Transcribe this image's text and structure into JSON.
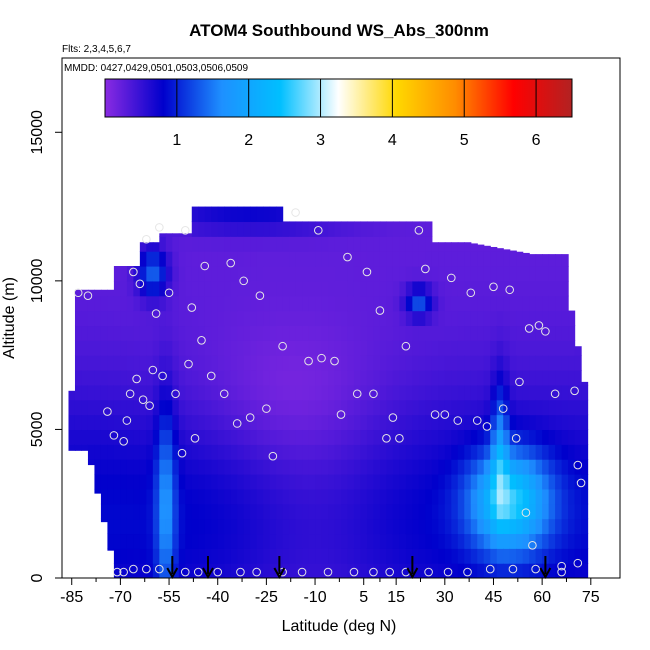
{
  "chart_data": {
    "type": "heatmap",
    "title": "ATOM4 Southbound WS_Abs_300nm",
    "subtitle": "Flts: 2,3,4,5,6,7",
    "annotation": "MMDD: 0427,0429,0501,0503,0506,0509",
    "xlabel": "Latitude (deg N)",
    "ylabel": "Altitude (m)",
    "xlim": [
      -88,
      84
    ],
    "ylim": [
      0,
      17500
    ],
    "x_ticks": [
      -85,
      -70,
      -55,
      -40,
      -25,
      -10,
      5,
      15,
      30,
      45,
      60,
      75
    ],
    "x_tick_labels": [
      "-85",
      "-70",
      "-55",
      "-40",
      "-25",
      "-10",
      "5",
      "15",
      "30",
      "45",
      "60",
      "75"
    ],
    "y_ticks": [
      0,
      5000,
      10000,
      15000
    ],
    "y_tick_labels": [
      "0",
      "5000",
      "10000",
      "15000"
    ],
    "colorbar": {
      "min": 0,
      "max": 6.5,
      "ticks": [
        1,
        2,
        3,
        4,
        5,
        6
      ],
      "tick_labels": [
        "1",
        "2",
        "3",
        "4",
        "5",
        "6"
      ],
      "colors": [
        "#8a2be2",
        "#0000cc",
        "#1e90ff",
        "#00bfff",
        "#ffffff",
        "#ffd700",
        "#ff8c00",
        "#ff0000",
        "#b22222"
      ]
    },
    "grid": false,
    "profile_latitudes": [
      -54,
      -43,
      -21,
      20,
      61
    ],
    "sample_points": [
      {
        "lat": -83,
        "alt": 9600
      },
      {
        "lat": -80,
        "alt": 9500
      },
      {
        "lat": -74,
        "alt": 5600
      },
      {
        "lat": -72,
        "alt": 4800
      },
      {
        "lat": -71,
        "alt": 200
      },
      {
        "lat": -69,
        "alt": 4600
      },
      {
        "lat": -68,
        "alt": 5300
      },
      {
        "lat": -67,
        "alt": 6200
      },
      {
        "lat": -66,
        "alt": 10300
      },
      {
        "lat": -65,
        "alt": 6700
      },
      {
        "lat": -64,
        "alt": 9900
      },
      {
        "lat": -63,
        "alt": 6000
      },
      {
        "lat": -62,
        "alt": 11400
      },
      {
        "lat": -61,
        "alt": 5800
      },
      {
        "lat": -60,
        "alt": 7000
      },
      {
        "lat": -59,
        "alt": 8900
      },
      {
        "lat": -58,
        "alt": 11800
      },
      {
        "lat": -57,
        "alt": 6800
      },
      {
        "lat": -55,
        "alt": 9600
      },
      {
        "lat": -53,
        "alt": 6200
      },
      {
        "lat": -51,
        "alt": 4200
      },
      {
        "lat": -50,
        "alt": 11700
      },
      {
        "lat": -49,
        "alt": 7200
      },
      {
        "lat": -48,
        "alt": 9100
      },
      {
        "lat": -47,
        "alt": 4700
      },
      {
        "lat": -45,
        "alt": 8000
      },
      {
        "lat": -44,
        "alt": 10500
      },
      {
        "lat": -42,
        "alt": 6800
      },
      {
        "lat": -38,
        "alt": 6200
      },
      {
        "lat": -36,
        "alt": 10600
      },
      {
        "lat": -34,
        "alt": 5200
      },
      {
        "lat": -32,
        "alt": 10000
      },
      {
        "lat": -30,
        "alt": 5400
      },
      {
        "lat": -27,
        "alt": 9500
      },
      {
        "lat": -25,
        "alt": 5700
      },
      {
        "lat": -23,
        "alt": 4100
      },
      {
        "lat": -20,
        "alt": 7800
      },
      {
        "lat": -16,
        "alt": 12300
      },
      {
        "lat": -12,
        "alt": 7300
      },
      {
        "lat": -9,
        "alt": 11700
      },
      {
        "lat": -8,
        "alt": 7400
      },
      {
        "lat": -4,
        "alt": 7300
      },
      {
        "lat": -2,
        "alt": 5500
      },
      {
        "lat": 0,
        "alt": 10800
      },
      {
        "lat": 3,
        "alt": 6200
      },
      {
        "lat": 6,
        "alt": 10300
      },
      {
        "lat": 8,
        "alt": 6200
      },
      {
        "lat": 10,
        "alt": 9000
      },
      {
        "lat": 12,
        "alt": 4700
      },
      {
        "lat": 14,
        "alt": 5400
      },
      {
        "lat": 16,
        "alt": 4700
      },
      {
        "lat": 18,
        "alt": 7800
      },
      {
        "lat": 22,
        "alt": 11700
      },
      {
        "lat": 24,
        "alt": 10400
      },
      {
        "lat": 27,
        "alt": 5500
      },
      {
        "lat": 30,
        "alt": 5500
      },
      {
        "lat": 32,
        "alt": 10100
      },
      {
        "lat": 34,
        "alt": 5300
      },
      {
        "lat": 38,
        "alt": 9600
      },
      {
        "lat": 40,
        "alt": 5300
      },
      {
        "lat": 43,
        "alt": 5100
      },
      {
        "lat": 45,
        "alt": 9800
      },
      {
        "lat": 48,
        "alt": 5700
      },
      {
        "lat": 50,
        "alt": 9700
      },
      {
        "lat": 52,
        "alt": 4700
      },
      {
        "lat": 53,
        "alt": 6600
      },
      {
        "lat": 55,
        "alt": 2200
      },
      {
        "lat": 56,
        "alt": 8400
      },
      {
        "lat": 57,
        "alt": 1100
      },
      {
        "lat": 59,
        "alt": 8500
      },
      {
        "lat": 61,
        "alt": 8300
      },
      {
        "lat": 64,
        "alt": 6200
      },
      {
        "lat": 66,
        "alt": 400
      },
      {
        "lat": 70,
        "alt": 6300
      },
      {
        "lat": 71,
        "alt": 3800
      },
      {
        "lat": 72,
        "alt": 3200
      },
      {
        "lat": -69,
        "alt": 200
      },
      {
        "lat": -66,
        "alt": 300
      },
      {
        "lat": -62,
        "alt": 300
      },
      {
        "lat": -58,
        "alt": 300
      },
      {
        "lat": -50,
        "alt": 200
      },
      {
        "lat": -46,
        "alt": 200
      },
      {
        "lat": -40,
        "alt": 200
      },
      {
        "lat": -33,
        "alt": 200
      },
      {
        "lat": -28,
        "alt": 200
      },
      {
        "lat": -20,
        "alt": 200
      },
      {
        "lat": -14,
        "alt": 200
      },
      {
        "lat": -6,
        "alt": 200
      },
      {
        "lat": 2,
        "alt": 200
      },
      {
        "lat": 8,
        "alt": 200
      },
      {
        "lat": 13,
        "alt": 200
      },
      {
        "lat": 18,
        "alt": 200
      },
      {
        "lat": 25,
        "alt": 200
      },
      {
        "lat": 31,
        "alt": 200
      },
      {
        "lat": 37,
        "alt": 200
      },
      {
        "lat": 44,
        "alt": 300
      },
      {
        "lat": 51,
        "alt": 300
      },
      {
        "lat": 58,
        "alt": 300
      },
      {
        "lat": 66,
        "alt": 200
      },
      {
        "lat": 71,
        "alt": 500
      }
    ]
  }
}
